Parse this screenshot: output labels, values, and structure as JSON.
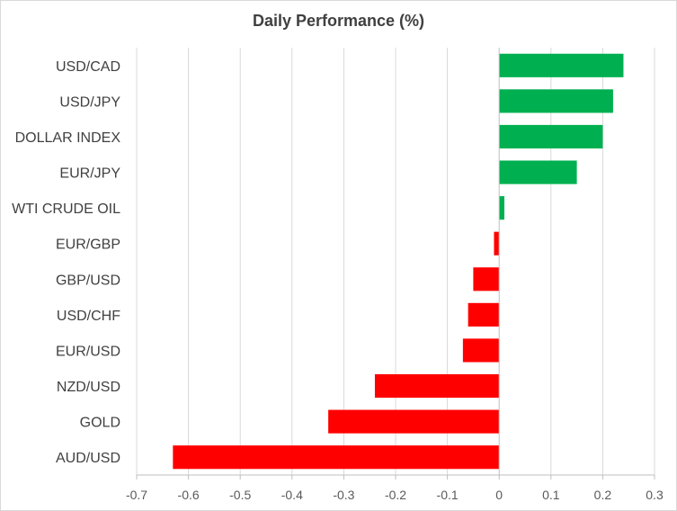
{
  "chart_data": {
    "type": "bar",
    "orientation": "horizontal",
    "title": "Daily Performance  (%)",
    "xlabel": "",
    "ylabel": "",
    "categories": [
      "USD/CAD",
      "USD/JPY",
      "DOLLAR INDEX",
      "EUR/JPY",
      "WTI CRUDE OIL",
      "EUR/GBP",
      "GBP/USD",
      "USD/CHF",
      "EUR/USD",
      "NZD/USD",
      "GOLD",
      "AUD/USD"
    ],
    "values": [
      0.24,
      0.22,
      0.2,
      0.15,
      0.01,
      -0.01,
      -0.05,
      -0.06,
      -0.07,
      -0.24,
      -0.33,
      -0.63
    ],
    "xlim": [
      -0.7,
      0.3
    ],
    "xticks": [
      -0.7,
      -0.6,
      -0.5,
      -0.4,
      -0.3,
      -0.2,
      -0.1,
      0,
      0.1,
      0.2,
      0.3
    ],
    "xtick_labels": [
      "-0.7",
      "-0.6",
      "-0.5",
      "-0.4",
      "-0.3",
      "-0.2",
      "-0.1",
      "0",
      "0.1",
      "0.2",
      "0.3"
    ],
    "grid": "vertical",
    "legend": "none",
    "colors": {
      "positive": "#00b050",
      "negative": "#ff0000",
      "gridline": "#d9d9d9",
      "axis": "#bfbfbf"
    }
  }
}
